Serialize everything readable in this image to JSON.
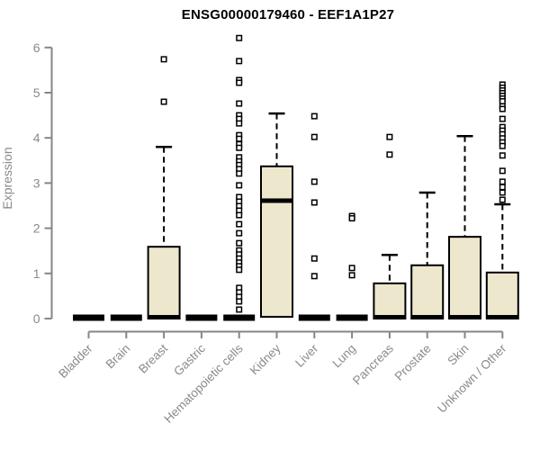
{
  "chart_data": {
    "type": "boxplot",
    "title": "ENSG00000179460 - EEF1A1P27",
    "ylabel": "Expression",
    "xlabel": "",
    "ylim": [
      0,
      6.3
    ],
    "yticks": [
      0,
      1,
      2,
      3,
      4,
      5,
      6
    ],
    "grid": false,
    "legend": "none",
    "xticklabel_rotation": 45,
    "colors": {
      "box_fill": "#ede7ce",
      "box_stroke": "#000000",
      "median": "#000000",
      "whisker": "#000000",
      "outlier_stroke": "#000000",
      "outlier_fill": "#ffffff",
      "axis": "#868686",
      "tick_label": "#8a8a8a",
      "title": "#000000"
    },
    "categories": [
      "Bladder",
      "Brain",
      "Breast",
      "Gastric",
      "Hematopoietic cells",
      "Kidney",
      "Liver",
      "Lung",
      "Pancreas",
      "Prostate",
      "Skin",
      "Unknown / Other"
    ],
    "boxes": [
      {
        "category": "Bladder",
        "min": 0,
        "q1": 0,
        "median": 0.02,
        "q3": 0.04,
        "max": 0.04,
        "outliers": []
      },
      {
        "category": "Brain",
        "min": 0,
        "q1": 0,
        "median": 0.02,
        "q3": 0.04,
        "max": 0.04,
        "outliers": []
      },
      {
        "category": "Breast",
        "min": 0,
        "q1": 0,
        "median": 0.03,
        "q3": 1.59,
        "max": 3.8,
        "outliers": [
          5.74,
          4.8
        ]
      },
      {
        "category": "Gastric",
        "min": 0,
        "q1": 0,
        "median": 0.02,
        "q3": 0.04,
        "max": 0.04,
        "outliers": []
      },
      {
        "category": "Hematopoietic cells",
        "min": 0,
        "q1": 0,
        "median": 0.02,
        "q3": 0.04,
        "max": 0.04,
        "outliers": [
          6.21,
          5.7,
          5.28,
          5.22,
          4.76,
          4.5,
          4.42,
          4.32,
          4.06,
          3.98,
          3.86,
          3.78,
          3.57,
          3.48,
          3.4,
          3.31,
          3.21,
          2.95,
          2.69,
          2.59,
          2.49,
          2.39,
          2.29,
          2.09,
          1.89,
          1.67,
          1.51,
          1.42,
          1.33,
          1.24,
          1.16,
          1.08,
          0.68,
          0.58,
          0.48,
          0.38,
          0.2
        ]
      },
      {
        "category": "Kidney",
        "min": 0,
        "q1": 0.04,
        "median": 2.61,
        "q3": 3.37,
        "max": 4.54,
        "outliers": []
      },
      {
        "category": "Liver",
        "min": 0,
        "q1": 0,
        "median": 0.02,
        "q3": 0.04,
        "max": 0.04,
        "outliers": [
          4.48,
          4.02,
          3.03,
          2.57,
          1.33,
          0.94
        ]
      },
      {
        "category": "Lung",
        "min": 0,
        "q1": 0,
        "median": 0.02,
        "q3": 0.04,
        "max": 0.04,
        "outliers": [
          2.27,
          2.22,
          1.12,
          0.96
        ]
      },
      {
        "category": "Pancreas",
        "min": 0,
        "q1": 0,
        "median": 0.03,
        "q3": 0.78,
        "max": 1.41,
        "outliers": [
          4.02,
          3.63
        ]
      },
      {
        "category": "Prostate",
        "min": 0,
        "q1": 0,
        "median": 0.03,
        "q3": 1.18,
        "max": 2.79,
        "outliers": []
      },
      {
        "category": "Skin",
        "min": 0,
        "q1": 0,
        "median": 0.03,
        "q3": 1.81,
        "max": 4.04,
        "outliers": []
      },
      {
        "category": "Unknown / Other",
        "min": 0,
        "q1": 0,
        "median": 0.03,
        "q3": 1.02,
        "max": 2.53,
        "outliers": [
          5.18,
          5.11,
          5.05,
          4.99,
          4.93,
          4.87,
          4.81,
          4.7,
          4.64,
          4.42,
          4.24,
          4.16,
          4.08,
          3.99,
          3.9,
          3.82,
          3.61,
          3.27,
          3.03,
          2.91,
          2.79,
          2.63
        ]
      }
    ]
  }
}
